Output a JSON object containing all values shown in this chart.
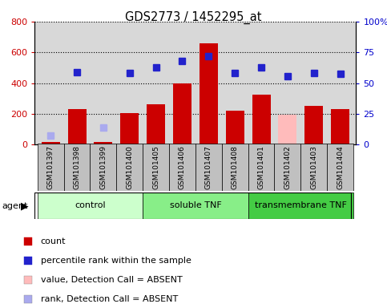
{
  "title": "GDS2773 / 1452295_at",
  "samples": [
    "GSM101397",
    "GSM101398",
    "GSM101399",
    "GSM101400",
    "GSM101405",
    "GSM101406",
    "GSM101407",
    "GSM101408",
    "GSM101401",
    "GSM101402",
    "GSM101403",
    "GSM101404"
  ],
  "bar_values": [
    20,
    230,
    20,
    205,
    265,
    400,
    660,
    220,
    325,
    195,
    255,
    230
  ],
  "bar_colors": [
    "#cc0000",
    "#cc0000",
    "#cc0000",
    "#cc0000",
    "#cc0000",
    "#cc0000",
    "#cc0000",
    "#cc0000",
    "#cc0000",
    "#ffbbbb",
    "#cc0000",
    "#cc0000"
  ],
  "rank_values": [
    7.5,
    58.8,
    13.8,
    58.1,
    62.5,
    68.1,
    71.9,
    58.1,
    62.5,
    55.6,
    58.1,
    57.5
  ],
  "rank_colors": [
    "#aaaaee",
    "#2222cc",
    "#aaaaee",
    "#2222cc",
    "#2222cc",
    "#2222cc",
    "#2222cc",
    "#2222cc",
    "#2222cc",
    "#2222cc",
    "#2222cc",
    "#2222cc"
  ],
  "groups": [
    {
      "label": "control",
      "start": 0,
      "end": 4,
      "color": "#ccffcc"
    },
    {
      "label": "soluble TNF",
      "start": 4,
      "end": 8,
      "color": "#88ee88"
    },
    {
      "label": "transmembrane TNF",
      "start": 8,
      "end": 12,
      "color": "#44cc44"
    }
  ],
  "agent_label": "agent",
  "ylim_left": [
    0,
    800
  ],
  "ylim_right": [
    0,
    100
  ],
  "yticks_left": [
    0,
    200,
    400,
    600,
    800
  ],
  "ytick_labels_right": [
    "0",
    "25",
    "50",
    "75",
    "100%"
  ],
  "yticks_right": [
    0,
    25,
    50,
    75,
    100
  ],
  "left_axis_color": "#cc0000",
  "right_axis_color": "#0000cc",
  "plot_bg_color": "#d8d8d8",
  "label_bg_color": "#c0c0c0",
  "legend_items": [
    {
      "color": "#cc0000",
      "label": "count"
    },
    {
      "color": "#2222cc",
      "label": "percentile rank within the sample"
    },
    {
      "color": "#ffbbbb",
      "label": "value, Detection Call = ABSENT"
    },
    {
      "color": "#aaaaee",
      "label": "rank, Detection Call = ABSENT"
    }
  ]
}
